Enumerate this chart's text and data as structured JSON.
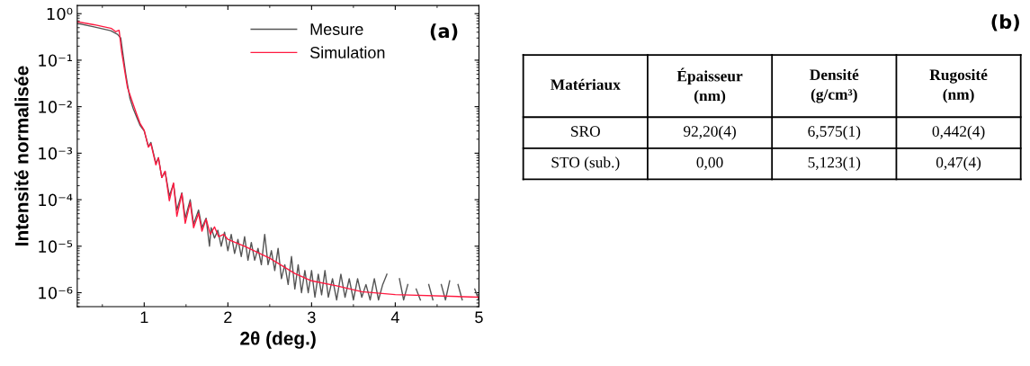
{
  "chart_data": [
    {
      "type": "line",
      "title": "(a)",
      "xlabel": "2θ (deg.)",
      "ylabel": "Intensité normalisée",
      "log": "y",
      "legend": "top",
      "grid": false,
      "xlim": [
        0.2,
        5
      ],
      "xticks": [
        1,
        2,
        3,
        4,
        5
      ],
      "ylim": [
        5e-07,
        1.5
      ],
      "yticks": [
        {
          "value": 1,
          "label": "10⁰"
        },
        {
          "value": 0.1,
          "label": "10⁻¹"
        },
        {
          "value": 0.01,
          "label": "10⁻²"
        },
        {
          "value": 0.001,
          "label": "10⁻³"
        },
        {
          "value": 0.0001,
          "label": "10⁻⁴"
        },
        {
          "value": 1e-05,
          "label": "10⁻⁵"
        },
        {
          "value": 1e-06,
          "label": "10⁻⁶"
        }
      ],
      "series": [
        {
          "name": "Mesure",
          "color": "#555555",
          "x": [
            0.2,
            0.4,
            0.6,
            0.68,
            0.72,
            0.75,
            0.78,
            0.8,
            0.83,
            0.87,
            0.91,
            0.95,
            1.0,
            1.05,
            1.08,
            1.14,
            1.17,
            1.21,
            1.25,
            1.3,
            1.35,
            1.39,
            1.45,
            1.49,
            1.55,
            1.59,
            1.65,
            1.69,
            1.74,
            1.78,
            1.8,
            1.84,
            1.88,
            1.92,
            1.96,
            2.0,
            2.04,
            2.08,
            2.12,
            2.16,
            2.2,
            2.24,
            2.28,
            2.32,
            2.36,
            2.4,
            2.44,
            2.48,
            2.52,
            2.56,
            2.6,
            2.64,
            2.68,
            2.72,
            2.76,
            2.8,
            2.84,
            2.88,
            2.92,
            2.96,
            3.0,
            3.04,
            3.08,
            3.12,
            3.16,
            3.2,
            3.25,
            3.3,
            3.35,
            3.4,
            3.45,
            3.5,
            3.55,
            3.6,
            3.65,
            3.7,
            3.75,
            3.8,
            3.85,
            3.9,
            3.95,
            4.05,
            4.1,
            4.15,
            4.2,
            4.25,
            4.3,
            4.35,
            4.4,
            4.45,
            4.5,
            4.55,
            4.6,
            4.65,
            4.7,
            4.75,
            4.8,
            4.9,
            4.95,
            5.0
          ],
          "values": [
            0.62,
            0.52,
            0.43,
            0.36,
            0.3,
            0.12,
            0.05,
            0.03,
            0.015,
            0.009,
            0.006,
            0.004,
            0.003,
            0.0014,
            0.0017,
            0.0006,
            0.0008,
            0.0003,
            0.0004,
            0.00012,
            0.00022,
            6e-05,
            0.00014,
            4e-05,
            0.0001,
            3e-05,
            6e-05,
            2.5e-05,
            4e-05,
            1e-05,
            2.5e-05,
            1.5e-05,
            2.2e-05,
            1e-05,
            2e-05,
            8e-06,
            1.8e-05,
            7e-06,
            1.4e-05,
            6e-06,
            1.6e-05,
            5e-06,
            1.2e-05,
            5e-06,
            9e-06,
            4e-06,
            1.8e-05,
            4e-06,
            8e-06,
            3e-06,
            9e-06,
            2e-06,
            4e-06,
            1.5e-06,
            6e-06,
            1.2e-06,
            4e-06,
            1e-06,
            3e-06,
            1e-06,
            3e-06,
            8e-07,
            2.5e-06,
            9e-07,
            3e-06,
            8e-07,
            2e-06,
            7e-07,
            2.5e-06,
            8e-07,
            2e-06,
            7e-07,
            2e-06,
            8e-07,
            1.5e-06,
            7e-07,
            2e-06,
            7e-07,
            1.5e-06,
            2.5e-06,
            null,
            2e-06,
            7e-07,
            1.5e-06,
            null,
            1.2e-06,
            7e-07,
            null,
            1.5e-06,
            7e-07,
            null,
            1.5e-06,
            7e-07,
            1.8e-06,
            null,
            1.5e-06,
            7e-07,
            null,
            1.2e-06,
            7e-07
          ]
        },
        {
          "name": "Simulation",
          "color": "#ff1a40",
          "x": [
            0.2,
            0.4,
            0.61,
            0.66,
            0.7,
            0.73,
            0.77,
            0.8,
            0.86,
            0.91,
            0.95,
            1.0,
            1.05,
            1.08,
            1.14,
            1.17,
            1.21,
            1.25,
            1.3,
            1.35,
            1.39,
            1.45,
            1.49,
            1.55,
            1.59,
            1.65,
            1.69,
            1.74,
            1.79,
            1.84,
            1.89,
            1.95,
            2.0,
            2.2,
            2.5,
            2.8,
            3.0,
            3.3,
            3.6,
            4.0,
            5.0
          ],
          "values": [
            0.67,
            0.58,
            0.48,
            0.41,
            0.44,
            0.155,
            0.055,
            0.026,
            0.0125,
            0.0069,
            0.0044,
            0.0031,
            0.00135,
            0.0016,
            0.00056,
            0.0008,
            0.0003,
            0.00041,
            9.5e-05,
            0.00023,
            4.4e-05,
            0.000135,
            3.1e-05,
            8.7e-05,
            2.5e-05,
            5.1e-05,
            2.1e-05,
            3.8e-05,
            1.8e-05,
            2.6e-05,
            1.6e-05,
            1.8e-05,
            1.4e-05,
            1e-05,
            5.5e-06,
            2.6e-06,
            1.8e-06,
            1.4e-06,
            1.05e-06,
            9.1e-07,
            8e-07
          ]
        }
      ]
    },
    {
      "type": "other",
      "title": "(b)",
      "annotations": [
        "Matériaux",
        "Épaisseur\n(nm)",
        "Densité\n(g/cm³)",
        "Rugosité\n(nm)",
        "SRO",
        "92,20(4)",
        "6,575(1)",
        "0,442(4)",
        "STO (sub.)",
        "0,00",
        "5,123(1)",
        "0,47(4)"
      ]
    }
  ]
}
